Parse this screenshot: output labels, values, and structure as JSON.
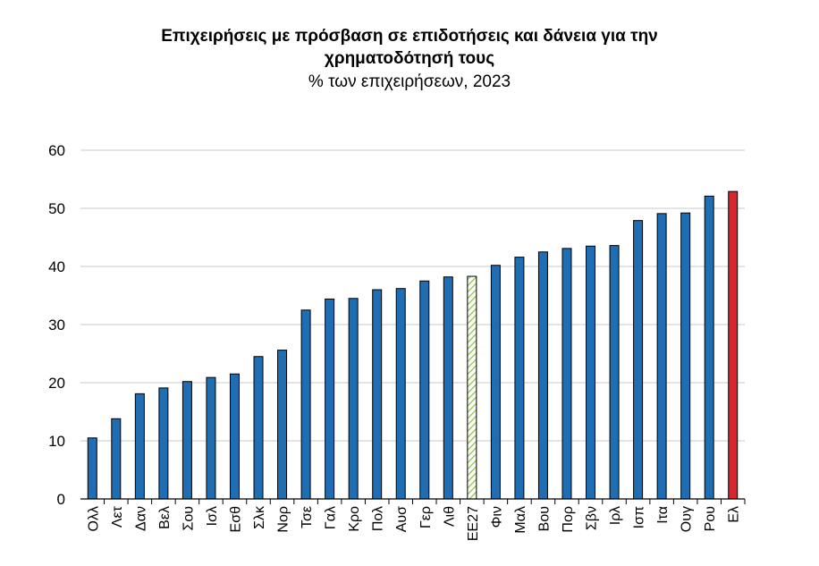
{
  "chart_data": {
    "type": "bar",
    "title": "Επιχειρήσεις με πρόσβαση σε επιδοτήσεις και δάνεια για την χρηματοδότησή τους",
    "subtitle": "% των επιχειρήσεων, 2023",
    "xlabel": "",
    "ylabel": "",
    "ylim": [
      0,
      60
    ],
    "yticks": [
      0,
      10,
      20,
      30,
      40,
      50,
      60
    ],
    "grid": true,
    "legend": "none",
    "categories": [
      "Ολλ",
      "Λετ",
      "Δαν",
      "Βελ",
      "Σου",
      "Ισλ",
      "Εσθ",
      "Σλκ",
      "Νορ",
      "Τσε",
      "Γαλ",
      "Κρο",
      "Πολ",
      "Αυσ",
      "Γερ",
      "Λιθ",
      "ΕΕ27",
      "Φιν",
      "Μαλ",
      "Βου",
      "Πορ",
      "Σβν",
      "Ιρλ",
      "Ισπ",
      "Ιτα",
      "Ουγ",
      "Ρου",
      "Ελ"
    ],
    "values": [
      10.5,
      13.8,
      18.1,
      19.1,
      20.2,
      20.9,
      21.5,
      24.5,
      25.6,
      32.5,
      34.4,
      34.5,
      36.0,
      36.2,
      37.5,
      38.2,
      38.3,
      40.2,
      41.6,
      42.5,
      43.1,
      43.5,
      43.6,
      47.9,
      49.1,
      49.2,
      52.1,
      52.9
    ],
    "colors": {
      "default": "#1f6db3",
      "highlight": "#d7262d",
      "average_hatch": "#9ecb5a",
      "grid": "#c8c8c8"
    },
    "highlight_category": "Ελ",
    "average_category": "ΕΕ27"
  }
}
